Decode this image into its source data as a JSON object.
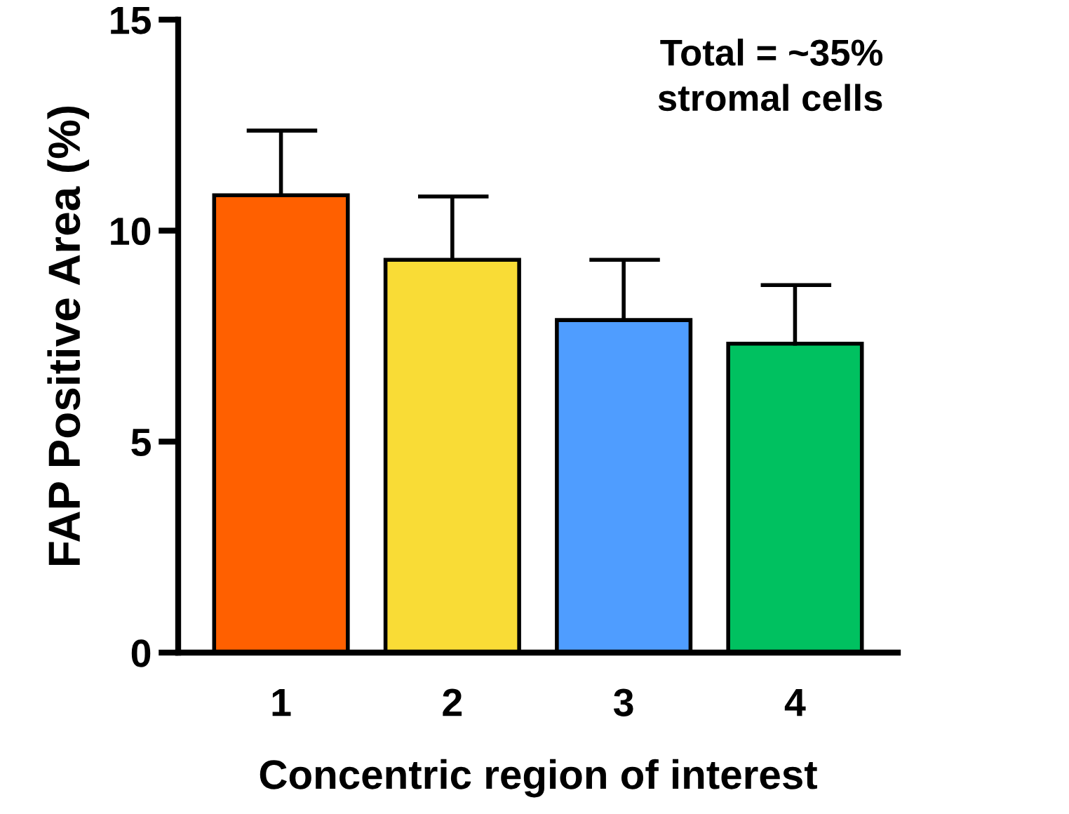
{
  "chart_data": {
    "type": "bar",
    "xlabel": "Concentric region of interest",
    "ylabel": "FAP Positive Area (%)",
    "categories": [
      "1",
      "2",
      "3",
      "4"
    ],
    "values": [
      10.84,
      9.31,
      7.88,
      7.32
    ],
    "colors": [
      "#ff6000",
      "#f9dc36",
      "#4f9dff",
      "#00c160"
    ],
    "errors": [
      [
        10.84,
        12.37
      ],
      [
        9.31,
        10.81
      ],
      [
        7.88,
        9.31
      ],
      [
        7.32,
        8.71
      ]
    ],
    "ylim": [
      0,
      15
    ],
    "yticks": [
      0,
      5,
      10,
      15
    ],
    "grid": false,
    "annotations": [
      "Total = ~35%\nstromal cells"
    ]
  }
}
